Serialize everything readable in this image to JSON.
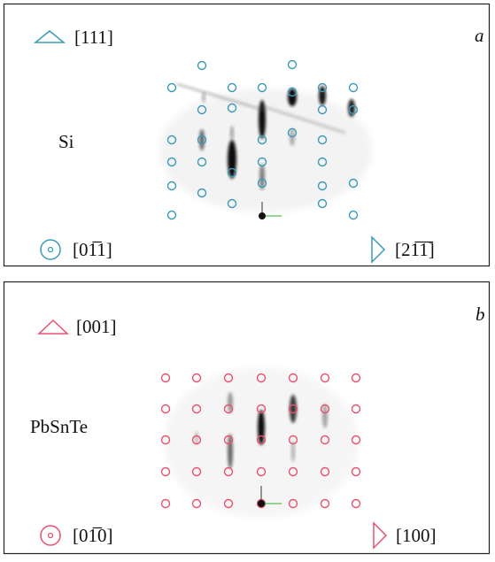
{
  "panels": [
    {
      "label": "a",
      "material": "Si",
      "top_direction": "[111]",
      "bottom_left_direction": "[01̅1]",
      "bottom_right_direction": "[21̅1̅]"
    },
    {
      "label": "b",
      "material": "PbSnTe",
      "top_direction": "[001]",
      "bottom_left_direction": "[01̅0]",
      "bottom_right_direction": "[100]"
    }
  ]
}
